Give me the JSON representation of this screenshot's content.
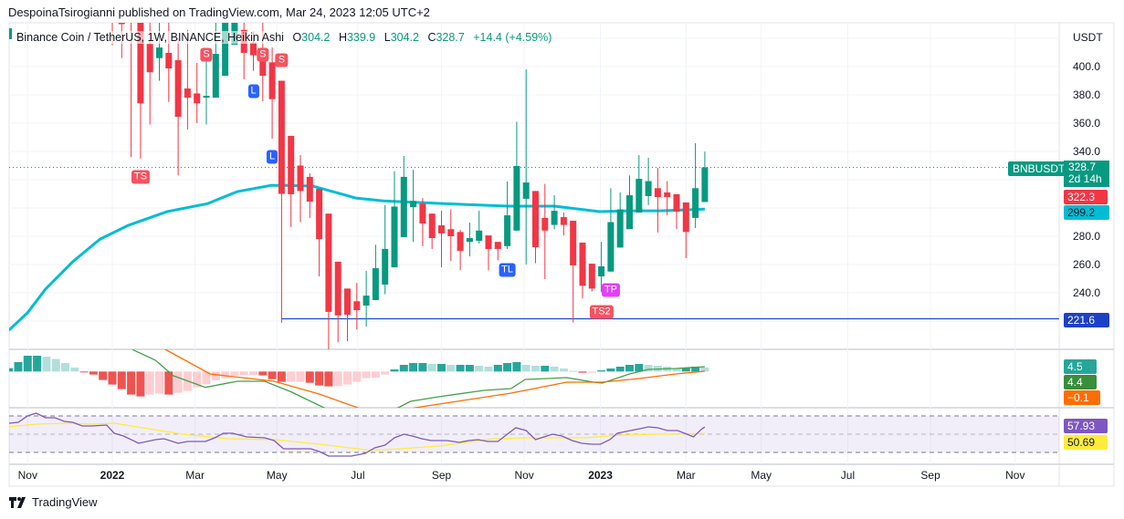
{
  "publisher": "DespoinaTsirogianni published on TradingView.com, Mar 24, 2023 12:05 UTC+2",
  "legend": {
    "symbol": "Binance Coin / TetherUS, 1W, BINANCE, Heikin Ashi",
    "o_key": "O",
    "o": "304.2",
    "h_key": "H",
    "h": "339.9",
    "l_key": "L",
    "l": "304.2",
    "c_key": "C",
    "c": "328.7",
    "change": "+14.4 (+4.59%)"
  },
  "currency": "USDT",
  "footer": "TradingView",
  "colors": {
    "up": "#089981",
    "down": "#F23645",
    "up_light": "#B2DFDB",
    "down_light": "#FFCDD2",
    "ma": "#00BCD4",
    "macd": "#43A047",
    "signal": "#FF6D00",
    "rsi": "#7E57C2",
    "rsi_ma": "#FFEB3B",
    "support": "#1848CC"
  },
  "price_tags": {
    "symbol": "BNBUSDT",
    "last": "328.7",
    "countdown": "2d 14h",
    "red": "322.3",
    "ma": "299.2",
    "support": "221.6",
    "hist": "4.5",
    "macd": "4.4",
    "signal": "−0.1",
    "rsi": "57.93",
    "rsi_ma": "50.69"
  },
  "chart_data": {
    "type": "candlestick",
    "title": "Binance Coin / TetherUS, 1W, BINANCE, Heikin Ashi",
    "ylabel": "USDT",
    "ylim": [
      200,
      431
    ],
    "yticks": [
      "400.0",
      "380.0",
      "360.0",
      "340.0",
      "280.0",
      "260.0",
      "240.0"
    ],
    "ytick_values": [
      400,
      380,
      360,
      340,
      280,
      260,
      240
    ],
    "xticks": [
      {
        "label": "Nov",
        "i": -9,
        "year": false
      },
      {
        "label": "2022",
        "i": 0,
        "year": true
      },
      {
        "label": "Mar",
        "i": 8.8,
        "year": false
      },
      {
        "label": "May",
        "i": 17.5,
        "year": false
      },
      {
        "label": "Jul",
        "i": 26.1,
        "year": false
      },
      {
        "label": "Sep",
        "i": 35,
        "year": false
      },
      {
        "label": "Nov",
        "i": 43.8,
        "year": false
      },
      {
        "label": "2023",
        "i": 51.9,
        "year": true
      },
      {
        "label": "Mar",
        "i": 61,
        "year": false
      },
      {
        "label": "May",
        "i": 69,
        "year": false
      },
      {
        "label": "Jul",
        "i": 78.2,
        "year": false
      },
      {
        "label": "Sep",
        "i": 87,
        "year": false
      },
      {
        "label": "Nov",
        "i": 96,
        "year": false
      }
    ],
    "candles_ohlc": [
      [
        470,
        480,
        415,
        450
      ],
      [
        450,
        455,
        406,
        430
      ],
      [
        438,
        445,
        336,
        432
      ],
      [
        432,
        436,
        335,
        374
      ],
      [
        416,
        435,
        359,
        396
      ],
      [
        406,
        440,
        390,
        413.5
      ],
      [
        409.7,
        434,
        375,
        398.7
      ],
      [
        404.5,
        420,
        323,
        364.5
      ],
      [
        384.5,
        426,
        355.5,
        378
      ],
      [
        381,
        402.6,
        360,
        374
      ],
      [
        378,
        406,
        359,
        379.3
      ],
      [
        378,
        440,
        378,
        409
      ],
      [
        393.5,
        450,
        393.5,
        440
      ],
      [
        415.5,
        455,
        415.5,
        445
      ],
      [
        426,
        440,
        391,
        409.7
      ],
      [
        417,
        425,
        397,
        408
      ],
      [
        413,
        434,
        375.5,
        393.5
      ],
      [
        403,
        413.5,
        349,
        377
      ],
      [
        390,
        390,
        218.7,
        310
      ],
      [
        351,
        351,
        286.5,
        309.7
      ],
      [
        330,
        337.4,
        290,
        312
      ],
      [
        322,
        324.5,
        293,
        304.5
      ],
      [
        313.5,
        313.5,
        251.6,
        278
      ],
      [
        296,
        296,
        200,
        226.5
      ],
      [
        262,
        262,
        205,
        224
      ],
      [
        243,
        243,
        205.8,
        224.5
      ],
      [
        234,
        247,
        214,
        227.7
      ],
      [
        231,
        255.5,
        216,
        238
      ],
      [
        234.8,
        274,
        234.8,
        257.4
      ],
      [
        245.8,
        302,
        239,
        271
      ],
      [
        258,
        326,
        258,
        301
      ],
      [
        279.4,
        336.8,
        279.4,
        322
      ],
      [
        300.6,
        327,
        276,
        305
      ],
      [
        303,
        307,
        273,
        289
      ],
      [
        296,
        296,
        271,
        278.7
      ],
      [
        287.7,
        298,
        258,
        282
      ],
      [
        285,
        299,
        262.6,
        280
      ],
      [
        283,
        284.5,
        256,
        269.7
      ],
      [
        276,
        289.7,
        265.8,
        278.7
      ],
      [
        276.8,
        298,
        274.8,
        284
      ],
      [
        280.6,
        280.6,
        256,
        271
      ],
      [
        276,
        276,
        263,
        271
      ],
      [
        273,
        318.7,
        271,
        294.8
      ],
      [
        284,
        361,
        284,
        329.7
      ],
      [
        306.5,
        398,
        260,
        318
      ],
      [
        312,
        312,
        261,
        272.3
      ],
      [
        293,
        317,
        249.7,
        284
      ],
      [
        288,
        309,
        285,
        298
      ],
      [
        293.5,
        296.8,
        280.6,
        288
      ],
      [
        291,
        291,
        219,
        259.4
      ],
      [
        275.5,
        275.5,
        236,
        245
      ],
      [
        260.6,
        260.6,
        241,
        243
      ],
      [
        251.6,
        276,
        240.6,
        258.7
      ],
      [
        255,
        314,
        255,
        290
      ],
      [
        272,
        311,
        272,
        299
      ],
      [
        285,
        323,
        285,
        309
      ],
      [
        296.8,
        337.4,
        296.8,
        320.6
      ],
      [
        308.4,
        335.5,
        302,
        319
      ],
      [
        314,
        328.4,
        282.6,
        307.7
      ],
      [
        311,
        319,
        294.8,
        307.7
      ],
      [
        309.7,
        309.7,
        285,
        297.4
      ],
      [
        303.9,
        303.9,
        264.5,
        283
      ],
      [
        293,
        345.8,
        285.8,
        314
      ],
      [
        304.2,
        339.9,
        304.2,
        328.7
      ]
    ],
    "ma_series": [
      [
        -11,
        213.5
      ],
      [
        -9,
        226
      ],
      [
        -7.1,
        242.6
      ],
      [
        -4.2,
        262
      ],
      [
        -1.3,
        278
      ],
      [
        1.7,
        287.7
      ],
      [
        5.8,
        297.4
      ],
      [
        10.1,
        303
      ],
      [
        13.3,
        311.6
      ],
      [
        16.9,
        316
      ],
      [
        18.4,
        316
      ],
      [
        21.3,
        315.5
      ],
      [
        25.9,
        307
      ],
      [
        28.8,
        305
      ],
      [
        35.6,
        303
      ],
      [
        42.1,
        301.3
      ],
      [
        47,
        301.3
      ],
      [
        51.8,
        297.4
      ],
      [
        55,
        298
      ],
      [
        58.3,
        298
      ],
      [
        63,
        299.2
      ]
    ],
    "last_price": 328.7,
    "support_level": 221.6,
    "support_start_i": 18,
    "markers": [
      {
        "label": "TS",
        "i": 3,
        "price": 322,
        "color": "#F7525F"
      },
      {
        "label": "S",
        "i": 10,
        "price": 420,
        "color": "#F7525F"
      },
      {
        "label": "S",
        "i": 16,
        "price": 442,
        "color": "#F7525F"
      },
      {
        "label": "S",
        "i": 18,
        "price": 404.5,
        "color": "#F7525F"
      },
      {
        "label": "L",
        "i": 15,
        "price": 382.6,
        "color": "#2962FF"
      },
      {
        "label": "L",
        "i": 17,
        "price": 336,
        "color": "#2962FF"
      },
      {
        "label": "TL",
        "i": 42,
        "price": 256,
        "color": "#2962FF"
      },
      {
        "label": "TP",
        "i": 53,
        "price": 242,
        "color": "#E040FB"
      },
      {
        "label": "TS2",
        "i": 52,
        "price": 226.5,
        "color": "#F7525F"
      }
    ],
    "macd": {
      "hist_start_i": -11,
      "histogram": [
        3.7,
        10.3,
        17.3,
        17.3,
        16.3,
        13.7,
        9.3,
        4.3,
        -0.7,
        -3.3,
        -9.3,
        -14.3,
        -19.3,
        -25.3,
        -27.3,
        -25.3,
        -24.3,
        -25.3,
        -23.3,
        -21.3,
        -17.3,
        -14,
        -9.7,
        -7.3,
        -4.7,
        -4,
        -3.7,
        -4.3,
        -8.3,
        -11.3,
        -11.3,
        -11.3,
        -12.3,
        -15.3,
        -16.3,
        -16,
        -14.3,
        -11.3,
        -7.3,
        -6.7,
        -3.3,
        2.3,
        7.3,
        9.3,
        9.3,
        8.3,
        8.3,
        7.3,
        7.3,
        7.3,
        6.3,
        5.3,
        7.3,
        9.3,
        10.3,
        7.3,
        6.3,
        6.3,
        5.3,
        3.3,
        0.7,
        -1.3,
        -1.3,
        1.3,
        3.3,
        5.3,
        7.3,
        8.3,
        7.3,
        6.3,
        5.3,
        3.3,
        4.3,
        5.3,
        4.5
      ],
      "macd_line": [
        [
          1.7,
          29
        ],
        [
          2.3,
          23.3
        ],
        [
          4.6,
          12.3
        ],
        [
          6.5,
          -4.7
        ],
        [
          9.9,
          -17.4
        ],
        [
          13.3,
          -10.7
        ],
        [
          16.2,
          -10.7
        ],
        [
          19.1,
          -22.7
        ],
        [
          22.5,
          -39.7
        ],
        [
          26,
          -55
        ],
        [
          30.4,
          -39.7
        ],
        [
          31.7,
          -32.7
        ],
        [
          34.7,
          -27.7
        ],
        [
          39.5,
          -20.7
        ],
        [
          42.4,
          -18.7
        ],
        [
          43.9,
          -8.7
        ],
        [
          46.3,
          -7.7
        ],
        [
          48.3,
          -6.7
        ],
        [
          51.2,
          -11.7
        ],
        [
          52.1,
          -12.7
        ],
        [
          55,
          -2.7
        ],
        [
          57,
          2.3
        ],
        [
          59.9,
          3.3
        ],
        [
          63,
          5.3
        ]
      ],
      "signal_line": [
        [
          3,
          40
        ],
        [
          5.8,
          23.3
        ],
        [
          10.4,
          -2.7
        ],
        [
          17.2,
          -10.7
        ],
        [
          22,
          -24.7
        ],
        [
          26.1,
          -39.7
        ],
        [
          29,
          -50
        ],
        [
          32.2,
          -39.7
        ],
        [
          42.4,
          -23.7
        ],
        [
          48.3,
          -11.7
        ],
        [
          52.1,
          -11.7
        ],
        [
          56,
          -7.7
        ],
        [
          59.9,
          -2.7
        ],
        [
          63,
          0.3
        ]
      ],
      "ylim": [
        -39.7,
        24.3
      ]
    },
    "rsi": {
      "bands": [
        70,
        50,
        30
      ],
      "rsi_line": [
        [
          -11,
          62
        ],
        [
          -10,
          63
        ],
        [
          -9,
          70
        ],
        [
          -8.1,
          73
        ],
        [
          -7.1,
          68
        ],
        [
          -6.1,
          68
        ],
        [
          -5.1,
          64
        ],
        [
          -4.2,
          63
        ],
        [
          -3.2,
          59
        ],
        [
          -2.2,
          59
        ],
        [
          -0.6,
          60
        ],
        [
          0.2,
          51
        ],
        [
          1.2,
          48
        ],
        [
          2.8,
          40
        ],
        [
          4.6,
          44
        ],
        [
          5.5,
          45
        ],
        [
          7,
          40
        ],
        [
          8,
          42
        ],
        [
          9.9,
          42
        ],
        [
          10.9,
          46
        ],
        [
          11.8,
          51
        ],
        [
          12.8,
          51
        ],
        [
          14.3,
          47
        ],
        [
          16.2,
          46
        ],
        [
          17.2,
          43
        ],
        [
          18.2,
          34
        ],
        [
          20.1,
          34
        ],
        [
          21.1,
          34
        ],
        [
          22,
          31
        ],
        [
          23,
          26
        ],
        [
          25.4,
          26
        ],
        [
          26.9,
          29
        ],
        [
          27.9,
          35
        ],
        [
          29,
          38
        ],
        [
          30,
          46
        ],
        [
          31,
          50
        ],
        [
          31.9,
          48
        ],
        [
          32.9,
          45
        ],
        [
          33.9,
          43
        ],
        [
          35.6,
          43
        ],
        [
          36.9,
          41
        ],
        [
          37.9,
          43
        ],
        [
          38.9,
          44
        ],
        [
          39.9,
          42
        ],
        [
          41,
          42
        ],
        [
          42,
          50
        ],
        [
          42.9,
          57
        ],
        [
          44,
          54
        ],
        [
          45,
          44
        ],
        [
          45.9,
          47
        ],
        [
          46.8,
          50
        ],
        [
          47.8,
          48
        ],
        [
          48.9,
          43
        ],
        [
          49.9,
          40
        ],
        [
          51,
          39
        ],
        [
          51.9,
          39
        ],
        [
          52.9,
          44
        ],
        [
          53.7,
          51
        ],
        [
          55.1,
          54
        ],
        [
          56.1,
          56
        ],
        [
          57,
          58
        ],
        [
          58,
          57
        ],
        [
          59,
          54
        ],
        [
          60.1,
          54
        ],
        [
          61.1,
          50
        ],
        [
          61.8,
          47
        ],
        [
          62.6,
          55
        ],
        [
          63,
          57.93
        ]
      ],
      "rsi_ma_line": [
        [
          -11,
          58
        ],
        [
          -8.1,
          61
        ],
        [
          -5.1,
          62
        ],
        [
          -2.2,
          61
        ],
        [
          0.2,
          62
        ],
        [
          2.6,
          58
        ],
        [
          7.5,
          50
        ],
        [
          12.3,
          45
        ],
        [
          17.2,
          44
        ],
        [
          22,
          39
        ],
        [
          26.9,
          33
        ],
        [
          29.3,
          33
        ],
        [
          34.7,
          37
        ],
        [
          40.5,
          45
        ],
        [
          44.4,
          46
        ],
        [
          50.2,
          46
        ],
        [
          54.1,
          49
        ],
        [
          58,
          50
        ],
        [
          63,
          50.69
        ]
      ]
    }
  }
}
